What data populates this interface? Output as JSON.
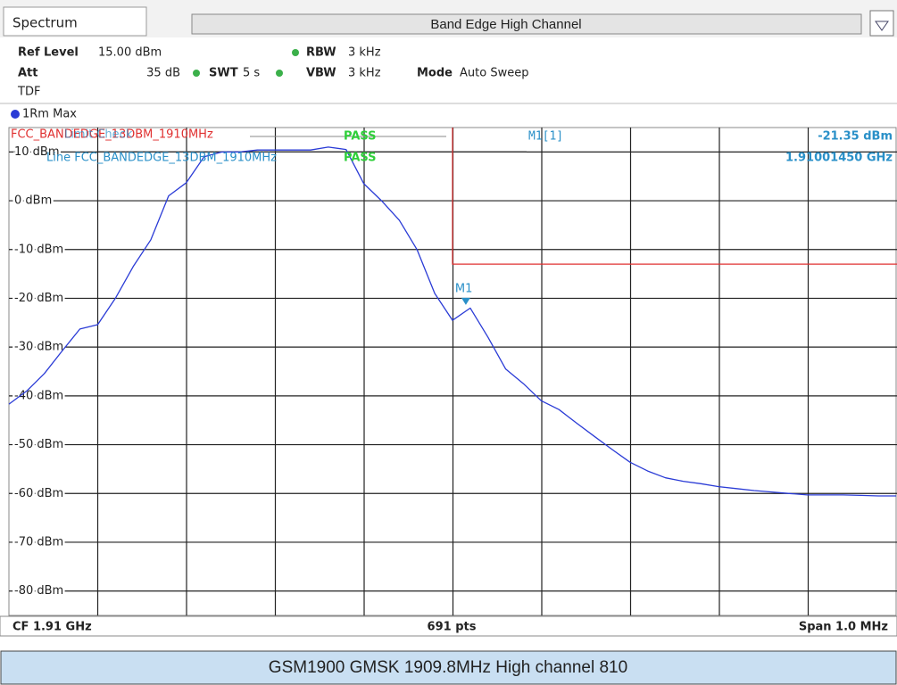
{
  "header": {
    "tab": "Spectrum",
    "title": "Band Edge High Channel",
    "ref_level_label": "Ref Level",
    "ref_level": "15.00 dBm",
    "att_label": "Att",
    "att": "35 dB",
    "swt_label": "SWT",
    "swt": "5 s",
    "rbw_label": "RBW",
    "rbw": "3 kHz",
    "vbw_label": "VBW",
    "vbw": "3 kHz",
    "mode_label": "Mode",
    "mode": "Auto Sweep",
    "tdf": "TDF"
  },
  "chart_data": {
    "type": "line",
    "trace_label": "1Rm Max",
    "series": [
      {
        "name": "1Rm Max",
        "color": "#2a3bd6",
        "values": [
          -41.7,
          -39,
          -35.4,
          -30.8,
          -26.3,
          -25.4,
          -20,
          -13.5,
          -8,
          1,
          3.7,
          9,
          10,
          10,
          10.4,
          10.4,
          10.4,
          10.4,
          11,
          10.5,
          3.5,
          0,
          -4,
          -10,
          -19,
          -24.5,
          -22,
          -28,
          -34.5,
          -37.5,
          -41,
          -42.8,
          -45.6,
          -48.3,
          -51,
          -53.6,
          -55.4,
          -56.8,
          -57.5,
          -58,
          -58.6,
          -59,
          -59.4,
          -59.7,
          -60,
          -60.3,
          -60.3,
          -60.3,
          -60.4,
          -60.5,
          -60.5
        ]
      }
    ],
    "ylim": [
      -85,
      15
    ],
    "yticks": [
      {
        "value": 10,
        "label": "10 dBm"
      },
      {
        "value": 0,
        "label": "0 dBm"
      },
      {
        "value": -10,
        "label": "-10 dBm"
      },
      {
        "value": -20,
        "label": "-20 dBm"
      },
      {
        "value": -30,
        "label": "-30 dBm"
      },
      {
        "value": -40,
        "label": "-40 dBm"
      },
      {
        "value": -50,
        "label": "-50 dBm"
      },
      {
        "value": -60,
        "label": "-60 dBm"
      },
      {
        "value": -70,
        "label": "-70 dBm"
      },
      {
        "value": -80,
        "label": "-80 dBm"
      }
    ],
    "grid": true,
    "limit": {
      "value": -13,
      "color": "#e03030",
      "name": "FCC_BANDEDGE_13DBM_1910MHz",
      "check_label": "Limit Check",
      "check_result": "PASS",
      "line_label": "Line FCC_BANDEDGE_13DBM_1910MHz",
      "line_result": "PASS"
    },
    "marker": {
      "label": "M1",
      "name": "M1[1]",
      "level": -21.35,
      "level_label": "-21.35 dBm",
      "freq_label": "1.91001450 GHz"
    },
    "footer": {
      "cf": "CF 1.91 GHz",
      "pts": "691 pts",
      "span": "Span 1.0 MHz"
    }
  },
  "caption": "GSM1900 GMSK 1909.8MHz High channel 810"
}
